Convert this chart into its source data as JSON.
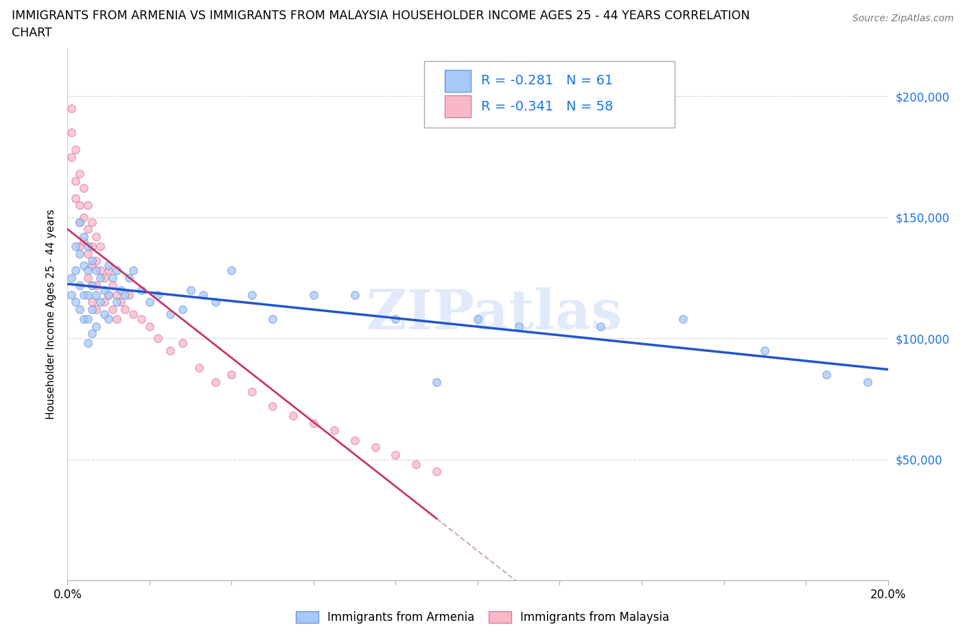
{
  "title_line1": "IMMIGRANTS FROM ARMENIA VS IMMIGRANTS FROM MALAYSIA HOUSEHOLDER INCOME AGES 25 - 44 YEARS CORRELATION",
  "title_line2": "CHART",
  "source_text": "Source: ZipAtlas.com",
  "ylabel": "Householder Income Ages 25 - 44 years",
  "xlim": [
    0.0,
    0.2
  ],
  "ylim": [
    0,
    220000
  ],
  "yticks": [
    0,
    50000,
    100000,
    150000,
    200000
  ],
  "xticks": [
    0.0,
    0.02,
    0.04,
    0.06,
    0.08,
    0.1,
    0.12,
    0.14,
    0.16,
    0.18,
    0.2
  ],
  "armenia_color": "#a8c8f8",
  "armenia_edge": "#6699dd",
  "malaysia_color": "#f8b8c8",
  "malaysia_edge": "#dd7799",
  "trendline_armenia_color": "#2255cc",
  "trendline_malaysia_color": "#cc3366",
  "trendline_malaysia_dash_color": "#ccaabb",
  "r_armenia": -0.281,
  "n_armenia": 61,
  "r_malaysia": -0.341,
  "n_malaysia": 58,
  "legend_r_color": "#1a73e8",
  "watermark": "ZIPatlas",
  "armenia_x": [
    0.001,
    0.001,
    0.002,
    0.002,
    0.002,
    0.003,
    0.003,
    0.003,
    0.003,
    0.004,
    0.004,
    0.004,
    0.004,
    0.005,
    0.005,
    0.005,
    0.005,
    0.005,
    0.006,
    0.006,
    0.006,
    0.006,
    0.007,
    0.007,
    0.007,
    0.008,
    0.008,
    0.009,
    0.009,
    0.01,
    0.01,
    0.01,
    0.011,
    0.012,
    0.012,
    0.013,
    0.014,
    0.015,
    0.016,
    0.018,
    0.02,
    0.022,
    0.025,
    0.028,
    0.03,
    0.033,
    0.036,
    0.04,
    0.045,
    0.05,
    0.06,
    0.07,
    0.08,
    0.09,
    0.1,
    0.11,
    0.13,
    0.15,
    0.17,
    0.185,
    0.195
  ],
  "armenia_y": [
    125000,
    118000,
    138000,
    128000,
    115000,
    135000,
    148000,
    122000,
    112000,
    142000,
    130000,
    118000,
    108000,
    138000,
    128000,
    118000,
    108000,
    98000,
    132000,
    122000,
    112000,
    102000,
    128000,
    118000,
    105000,
    125000,
    115000,
    120000,
    110000,
    130000,
    118000,
    108000,
    125000,
    128000,
    115000,
    120000,
    118000,
    125000,
    128000,
    120000,
    115000,
    118000,
    110000,
    112000,
    120000,
    118000,
    115000,
    128000,
    118000,
    108000,
    118000,
    118000,
    108000,
    82000,
    108000,
    105000,
    105000,
    108000,
    95000,
    85000,
    82000
  ],
  "malaysia_x": [
    0.001,
    0.001,
    0.001,
    0.002,
    0.002,
    0.002,
    0.003,
    0.003,
    0.003,
    0.003,
    0.004,
    0.004,
    0.004,
    0.005,
    0.005,
    0.005,
    0.005,
    0.006,
    0.006,
    0.006,
    0.006,
    0.006,
    0.007,
    0.007,
    0.007,
    0.007,
    0.008,
    0.008,
    0.009,
    0.009,
    0.01,
    0.01,
    0.011,
    0.011,
    0.012,
    0.012,
    0.013,
    0.014,
    0.015,
    0.016,
    0.018,
    0.02,
    0.022,
    0.025,
    0.028,
    0.032,
    0.036,
    0.04,
    0.045,
    0.05,
    0.055,
    0.06,
    0.065,
    0.07,
    0.075,
    0.08,
    0.085,
    0.09
  ],
  "malaysia_y": [
    195000,
    185000,
    175000,
    178000,
    165000,
    158000,
    168000,
    155000,
    148000,
    138000,
    162000,
    150000,
    140000,
    155000,
    145000,
    135000,
    125000,
    148000,
    138000,
    130000,
    122000,
    115000,
    142000,
    132000,
    122000,
    112000,
    138000,
    128000,
    125000,
    115000,
    128000,
    118000,
    122000,
    112000,
    118000,
    108000,
    115000,
    112000,
    118000,
    110000,
    108000,
    105000,
    100000,
    95000,
    98000,
    88000,
    82000,
    85000,
    78000,
    72000,
    68000,
    65000,
    62000,
    58000,
    55000,
    52000,
    48000,
    45000
  ],
  "malaysia_trend_x_end": 0.09
}
